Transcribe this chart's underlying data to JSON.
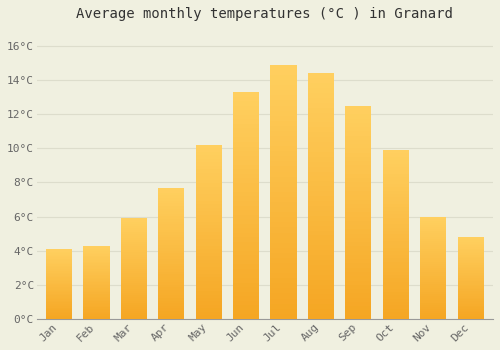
{
  "title": "Average monthly temperatures (°C ) in Granard",
  "months": [
    "Jan",
    "Feb",
    "Mar",
    "Apr",
    "May",
    "Jun",
    "Jul",
    "Aug",
    "Sep",
    "Oct",
    "Nov",
    "Dec"
  ],
  "values": [
    4.1,
    4.3,
    5.9,
    7.7,
    10.2,
    13.3,
    14.9,
    14.4,
    12.5,
    9.9,
    6.0,
    4.8
  ],
  "bar_color_bottom": "#F5A623",
  "bar_color_top": "#FFD060",
  "background_color": "#F0F0E0",
  "grid_color": "#DDDDCC",
  "text_color": "#666666",
  "ylim": [
    0,
    17
  ],
  "yticks": [
    0,
    2,
    4,
    6,
    8,
    10,
    12,
    14,
    16
  ],
  "title_fontsize": 10,
  "bar_width": 0.7
}
